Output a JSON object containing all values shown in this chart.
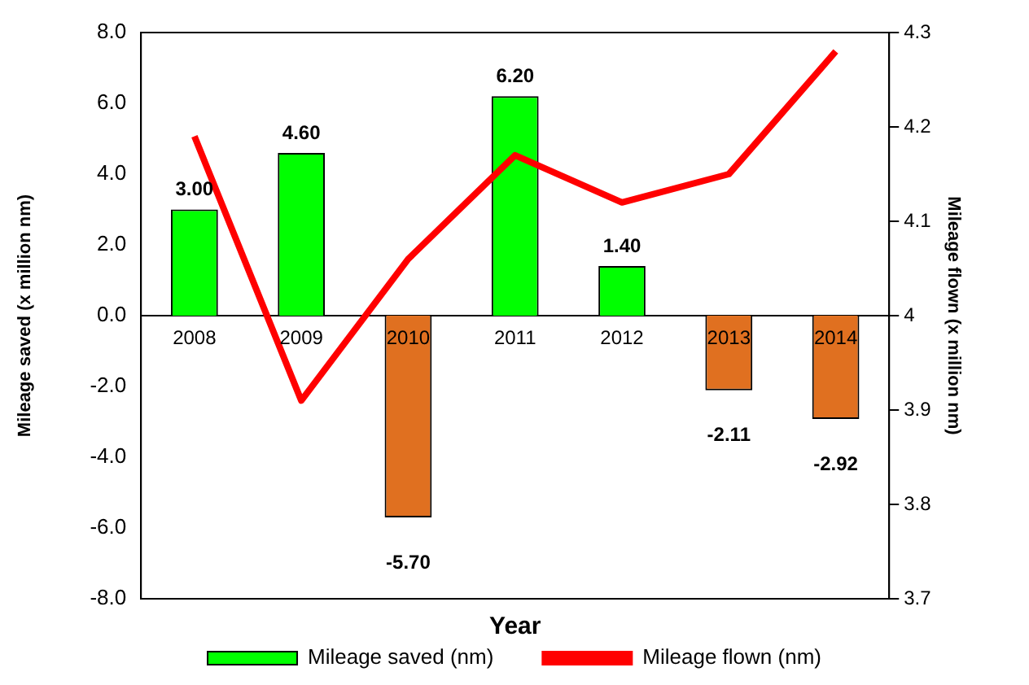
{
  "chart_data": {
    "type": "bar",
    "xlabel": "Year",
    "ylabel": "Mileage saved (x million nm)",
    "y2label": "Mileage flown (x million nm)",
    "categories": [
      "2008",
      "2009",
      "2010",
      "2011",
      "2012",
      "2013",
      "2014"
    ],
    "series": [
      {
        "name": "Mileage saved (nm)",
        "color": "#00ff00",
        "colors": [
          "#00ff00",
          "#00ff00",
          "#e07020",
          "#00ff00",
          "#00ff00",
          "#e07020",
          "#e07020"
        ],
        "values": [
          3.0,
          4.6,
          -5.7,
          6.2,
          1.4,
          -2.11,
          -2.92
        ],
        "value_labels": [
          "3.00",
          "4.60",
          "-5.70",
          "6.20",
          "1.40",
          "-2.11",
          "-2.92"
        ]
      },
      {
        "name": "Mileage flown (nm)",
        "type": "line",
        "axis": "y2",
        "color": "#ff0000",
        "values": [
          4.19,
          3.91,
          4.06,
          4.17,
          4.12,
          4.15,
          4.28
        ]
      }
    ],
    "ylim": [
      -8,
      8
    ],
    "yticks": [
      {
        "value": -8,
        "label": "-8.0"
      },
      {
        "value": -6,
        "label": "-6.0"
      },
      {
        "value": -4,
        "label": "-4.0"
      },
      {
        "value": -2,
        "label": "-2.0"
      },
      {
        "value": 0,
        "label": "0.0"
      },
      {
        "value": 2,
        "label": "2.0"
      },
      {
        "value": 4,
        "label": "4.0"
      },
      {
        "value": 6,
        "label": "6.0"
      },
      {
        "value": 8,
        "label": "8.0"
      }
    ],
    "y2lim": [
      3.7,
      4.3
    ],
    "y2ticks": [
      3.7,
      3.8,
      3.9,
      4.0,
      4.1,
      4.2,
      4.3
    ],
    "grid": false,
    "legend": "bottom",
    "marker": "none"
  }
}
